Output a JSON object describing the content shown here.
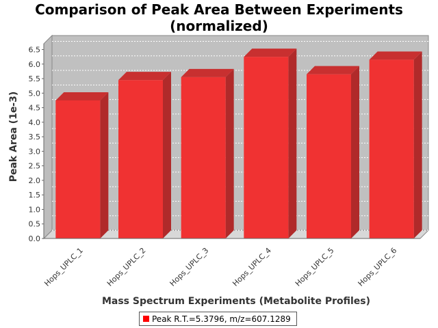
{
  "chart_data": {
    "type": "bar",
    "title_line1": "Comparison of Peak Area Between Experiments",
    "title_line2": "(normalized)",
    "xlabel": "Mass Spectrum Experiments (Metabolite Profiles)",
    "ylabel": "Peak Area (1e-3)",
    "categories": [
      "Hops_UPLC_1",
      "Hops_UPLC_2",
      "Hops_UPLC_3",
      "Hops_UPLC_4",
      "Hops_UPLC_5",
      "Hops_UPLC_6"
    ],
    "series": [
      {
        "name": "Peak R.T.=5.3796, m/z=607.1289",
        "values": [
          4.75,
          5.45,
          5.55,
          6.25,
          5.65,
          6.15
        ]
      }
    ],
    "ylim": [
      0,
      6.7
    ],
    "yticks": [
      "0.0",
      "0.5",
      "1.0",
      "1.5",
      "2.0",
      "2.5",
      "3.0",
      "3.5",
      "4.0",
      "4.5",
      "5.0",
      "5.5",
      "6.0",
      "6.5"
    ],
    "grid": true,
    "legend_position": "bottom",
    "colors": {
      "bar": "#ff0000",
      "plot_background": "#c0c0c0"
    }
  }
}
